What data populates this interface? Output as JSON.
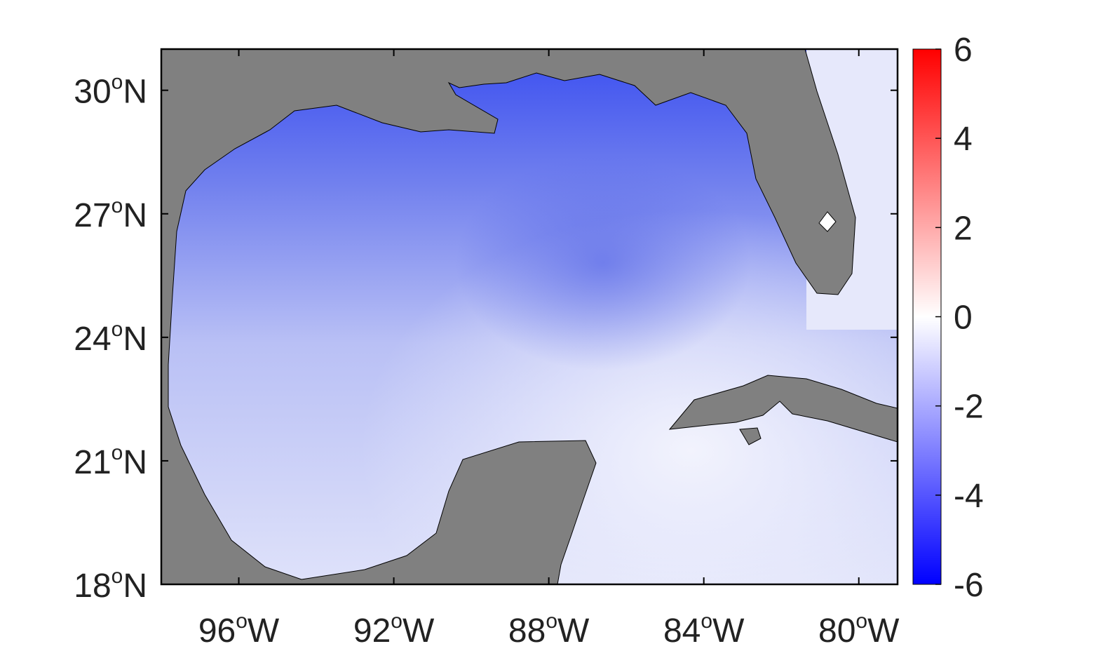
{
  "map": {
    "xlim": [
      -98,
      -79
    ],
    "ylim": [
      18,
      31
    ],
    "xticks": [
      {
        "value": -96,
        "label": "96",
        "degree": "o",
        "hemisphere": "W"
      },
      {
        "value": -92,
        "label": "92",
        "degree": "o",
        "hemisphere": "W"
      },
      {
        "value": -88,
        "label": "88",
        "degree": "o",
        "hemisphere": "W"
      },
      {
        "value": -84,
        "label": "84",
        "degree": "o",
        "hemisphere": "W"
      },
      {
        "value": -80,
        "label": "80",
        "degree": "o",
        "hemisphere": "W"
      }
    ],
    "yticks": [
      {
        "value": 18,
        "label": "18",
        "degree": "o",
        "hemisphere": "N"
      },
      {
        "value": 21,
        "label": "21",
        "degree": "o",
        "hemisphere": "N"
      },
      {
        "value": 24,
        "label": "24",
        "degree": "o",
        "hemisphere": "N"
      },
      {
        "value": 27,
        "label": "27",
        "degree": "o",
        "hemisphere": "N"
      },
      {
        "value": 30,
        "label": "30",
        "degree": "o",
        "hemisphere": "N"
      }
    ],
    "land_color": "#808080"
  },
  "colorbar": {
    "lim": [
      -6,
      6
    ],
    "ticks": [
      -6,
      -4,
      -2,
      0,
      2,
      4,
      6
    ],
    "colors": [
      "#0000ff",
      "#ffffff",
      "#ff0000"
    ]
  }
}
